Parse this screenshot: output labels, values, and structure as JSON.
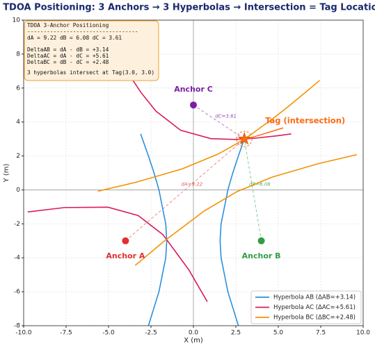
{
  "chart_data": {
    "type": "line",
    "title": "TDOA Positioning: 3 Anchors → 3 Hyperbolas → Intersection = Tag Location",
    "x_label": "X (m)",
    "y_label": "Y (m)",
    "xlim": [
      -10,
      10
    ],
    "ylim": [
      -8,
      10
    ],
    "xticks": [
      {
        "value": -10,
        "label": "-10.0"
      },
      -7.5,
      {
        "value": -5,
        "label": "-5.0"
      },
      -2.5,
      {
        "value": 0,
        "label": "0.0"
      },
      2.5,
      {
        "value": 5,
        "label": "5.0"
      },
      7.5,
      {
        "value": 10,
        "label": "10.0"
      }
    ],
    "yticks": [
      -8,
      -6,
      -4,
      -2,
      0,
      2,
      4,
      6,
      8,
      10
    ],
    "grid": true,
    "legend": "lower right",
    "series": [
      {
        "name": "Hyperbola AB  (ΔAB=+3.14)",
        "color": "#2b8fdc",
        "x": [
          2.65,
          2.03,
          1.63,
          1.57,
          1.63,
          2.03,
          2.32,
          2.65,
          3.0,
          null,
          -2.65,
          -2.03,
          -1.63,
          -1.57,
          -1.63,
          -2.03,
          -2.32,
          -2.65,
          -3.11
        ],
        "y": [
          -8,
          -6,
          -4,
          -3,
          -2,
          0,
          1,
          2,
          3,
          null,
          -8,
          -6,
          -4,
          -3,
          -2,
          0,
          1,
          2,
          3.3
        ]
      },
      {
        "name": "Hyperbola AC  (ΔAC=+5.61)",
        "color": "#d81b60",
        "x": [
          -4.43,
          -3.725,
          -3.089,
          -2.209,
          -0.746,
          1.037,
          2.443,
          3.595,
          4.972,
          5.761,
          null,
          -9.761,
          -7.595,
          -5.037,
          -3.254,
          -1.791,
          -0.275,
          0.817
        ],
        "y": [
          7.891,
          6.7,
          5.737,
          4.639,
          3.508,
          3.017,
          2.971,
          3.04,
          3.191,
          3.299,
          null,
          -1.299,
          -1.04,
          -1.017,
          -1.508,
          -2.639,
          -4.7,
          -6.587
        ]
      },
      {
        "name": "Hyperbola BC  (ΔBC=+2.48)",
        "color": "#f39200",
        "x": [
          -5.617,
          -3.37,
          -0.627,
          1.446,
          2.591,
          3.377,
          4.671,
          5.66,
          6.797,
          7.433,
          null,
          -3.433,
          -1.66,
          0.623,
          2.554,
          4.627,
          7.37,
          9.617
        ],
        "y": [
          -0.077,
          0.453,
          1.249,
          2.109,
          2.744,
          3.251,
          4.189,
          4.969,
          5.908,
          6.449,
          null,
          -4.449,
          -2.969,
          -1.251,
          -0.109,
          0.751,
          1.547,
          2.077
        ]
      }
    ],
    "anchors": [
      {
        "name": "Anchor A",
        "x": -4,
        "y": -3,
        "color": "#e03131",
        "distance_label": "dA=9.22"
      },
      {
        "name": "Anchor B",
        "x": 4,
        "y": -3,
        "color": "#2f9e44",
        "distance_label": "dB=6.08"
      },
      {
        "name": "Anchor C",
        "x": 0,
        "y": 5,
        "color": "#7b1fa2",
        "distance_label": "dC=3.61"
      }
    ],
    "tag": {
      "name": "Tag (intersection)",
      "x": 3,
      "y": 3,
      "color": "#ff6a13"
    },
    "info_box": [
      "TDOA 3-Anchor Positioning",
      "----------------------------------",
      "dA = 9.22    dB = 6.08    dC = 3.61",
      "DeltaAB = dA - dB = +3.14",
      "DeltaAC = dA - dC = +5.61",
      "DeltaBC = dB - dC = +2.48",
      "3 hyperbolas intersect at Tag(3.0, 3.0)"
    ]
  }
}
